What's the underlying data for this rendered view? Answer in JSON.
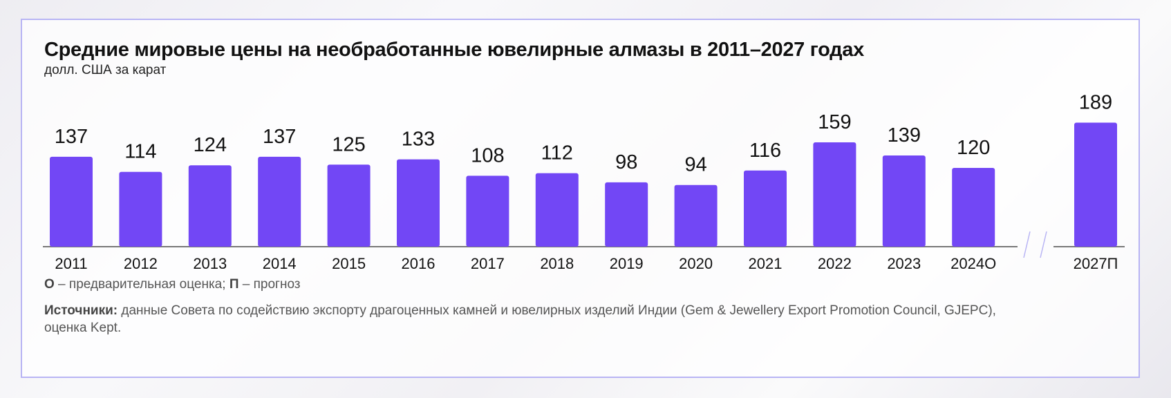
{
  "header": {
    "title": "Средние мировые цены на необработанные ювелирные алмазы в 2011–2027 годах",
    "subtitle": "долл. США за карат"
  },
  "footnote": {
    "o_mark": "О",
    "o_text": " – предварительная оценка; ",
    "p_mark": "П",
    "p_text": " – прогноз"
  },
  "source": {
    "label": "Источники:",
    "text": " данные Совета по содействию экспорту драгоценных камней и ювелирных изделий Индии (Gem & Jewellery Export Promotion Council, GJEPC), оценка Kept."
  },
  "colors": {
    "bar": "#7247f5",
    "axis": "#777777",
    "frame": "#b8b4f4",
    "break": "#b8b4f4"
  },
  "chart_data": {
    "type": "bar",
    "title": "Средние мировые цены на необработанные ювелирные алмазы в 2011–2027 годах",
    "ylabel": "долл. США за карат",
    "categories": [
      "2011",
      "2012",
      "2013",
      "2014",
      "2015",
      "2016",
      "2017",
      "2018",
      "2019",
      "2020",
      "2021",
      "2022",
      "2023",
      "2024О",
      "2027П"
    ],
    "values": [
      137,
      114,
      124,
      137,
      125,
      133,
      108,
      112,
      98,
      94,
      116,
      159,
      139,
      120,
      189
    ],
    "axis_break_before": "2027П",
    "grid": false,
    "data_labels": true
  }
}
